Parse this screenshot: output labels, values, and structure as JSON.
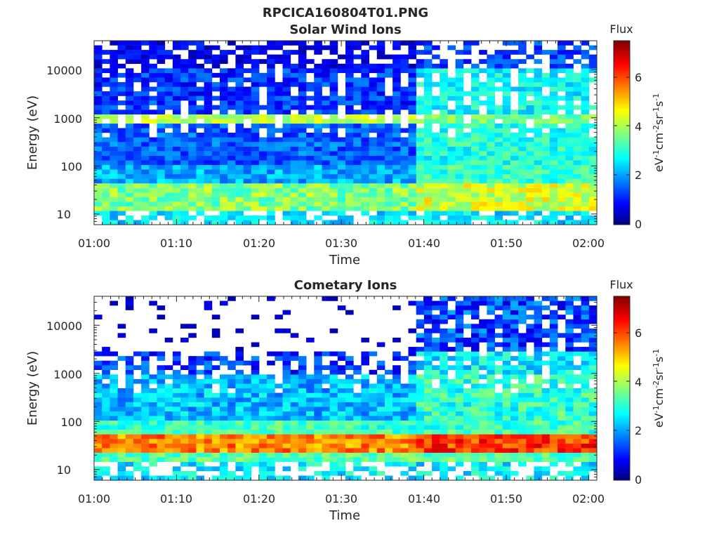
{
  "figure_title": "RPCICA160804T01.PNG",
  "chart_data": [
    {
      "type": "heatmap",
      "title": "Solar Wind Ions",
      "xlabel": "Time",
      "ylabel": "Energy (eV)",
      "x_ticks": [
        "01:00",
        "01:10",
        "01:20",
        "01:30",
        "01:40",
        "01:50",
        "02:00"
      ],
      "x_range": [
        "01:00",
        "02:01"
      ],
      "y_scale": "log",
      "y_ticks": [
        "10",
        "100",
        "1000",
        "10000"
      ],
      "y_range": [
        6,
        40000
      ],
      "colorbar": {
        "label": "Flux",
        "units": "eV-1cm-2sr-1s-1",
        "range": [
          0,
          7.4
        ],
        "ticks": [
          "0",
          "2",
          "4",
          "6"
        ],
        "colormap": "jet"
      },
      "approx_flux_by_interval": {
        "01:00-01:38": {
          "10-40 eV": 3.0,
          "~900 eV": 4.0,
          "100-600 eV": 1.3,
          "above 2000 eV": 0.5
        },
        "01:38-02:00": {
          "10-40 eV": 3.6,
          "~800 eV": 3.3,
          "100-10000 eV": 2.4,
          "above 10000 eV": 1.0
        }
      }
    },
    {
      "type": "heatmap",
      "title": "Cometary Ions",
      "xlabel": "Time",
      "ylabel": "Energy (eV)",
      "x_ticks": [
        "01:00",
        "01:10",
        "01:20",
        "01:30",
        "01:40",
        "01:50",
        "02:00"
      ],
      "x_range": [
        "01:00",
        "02:01"
      ],
      "y_scale": "log",
      "y_ticks": [
        "10",
        "100",
        "1000",
        "10000"
      ],
      "y_range": [
        6,
        40000
      ],
      "colorbar": {
        "label": "Flux",
        "units": "eV-1cm-2sr-1s-1",
        "range": [
          0,
          7.4
        ],
        "ticks": [
          "0",
          "2",
          "4",
          "6"
        ],
        "colormap": "jet"
      },
      "approx_flux_by_interval": {
        "01:00-01:38": {
          "20-40 eV": 5.2,
          "40-1000 eV": 2.0,
          "above 1000 eV": 0.4
        },
        "01:38-02:00": {
          "20-40 eV": 5.8,
          "40-2000 eV": 3.0,
          "2000-30000 eV": 1.2
        }
      }
    }
  ]
}
